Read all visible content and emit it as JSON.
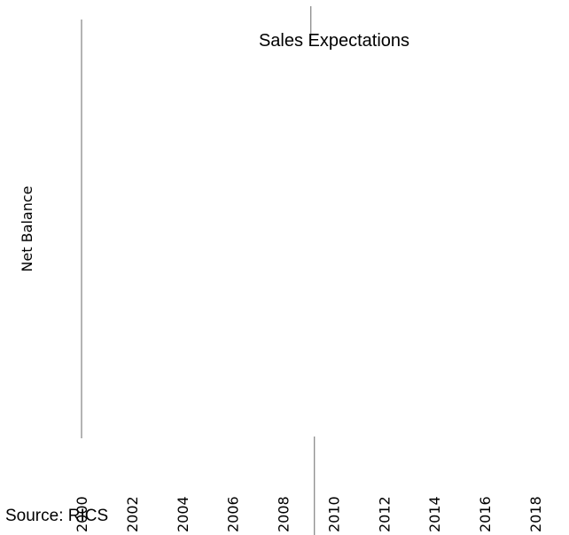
{
  "chart_data": {
    "type": "line",
    "title": "Sales Expectations",
    "xlabel": "",
    "ylabel": "Net Balance",
    "x_ticks": [
      "2000",
      "2002",
      "2004",
      "2006",
      "2008",
      "2010",
      "2012",
      "2014",
      "2016",
      "2018"
    ],
    "xlim": [
      2000,
      2018
    ],
    "marker_x": 2009.2,
    "series": [],
    "grid": false,
    "legend": "none"
  },
  "footer": {
    "source": "Source:  RICS"
  },
  "colors": {
    "axis": "#8c8c8c",
    "text": "#000000",
    "background": "#ffffff"
  }
}
